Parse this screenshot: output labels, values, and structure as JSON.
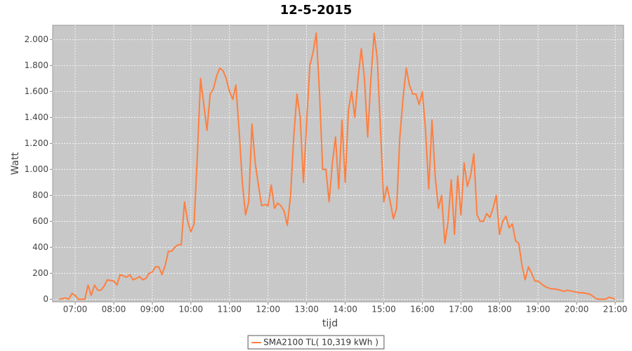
{
  "chart_data": {
    "type": "line",
    "title": "12-5-2015",
    "x_label": "tijd",
    "y_label": "Watt",
    "x": [
      "06:35",
      "06:40",
      "06:45",
      "06:50",
      "06:55",
      "07:00",
      "07:05",
      "07:10",
      "07:15",
      "07:20",
      "07:25",
      "07:30",
      "07:35",
      "07:40",
      "07:45",
      "07:50",
      "07:55",
      "08:00",
      "08:05",
      "08:10",
      "08:15",
      "08:20",
      "08:25",
      "08:30",
      "08:35",
      "08:40",
      "08:45",
      "08:50",
      "08:55",
      "09:00",
      "09:05",
      "09:10",
      "09:15",
      "09:20",
      "09:25",
      "09:30",
      "09:35",
      "09:40",
      "09:45",
      "09:50",
      "09:55",
      "10:00",
      "10:05",
      "10:10",
      "10:15",
      "10:20",
      "10:25",
      "10:30",
      "10:35",
      "10:40",
      "10:45",
      "10:50",
      "10:55",
      "11:00",
      "11:05",
      "11:10",
      "11:15",
      "11:20",
      "11:25",
      "11:30",
      "11:35",
      "11:40",
      "11:45",
      "11:50",
      "11:55",
      "12:00",
      "12:05",
      "12:10",
      "12:15",
      "12:20",
      "12:25",
      "12:30",
      "12:35",
      "12:40",
      "12:45",
      "12:50",
      "12:55",
      "13:00",
      "13:05",
      "13:10",
      "13:15",
      "13:20",
      "13:25",
      "13:30",
      "13:35",
      "13:40",
      "13:45",
      "13:50",
      "13:55",
      "14:00",
      "14:05",
      "14:10",
      "14:15",
      "14:20",
      "14:25",
      "14:30",
      "14:35",
      "14:40",
      "14:45",
      "14:50",
      "14:55",
      "15:00",
      "15:05",
      "15:10",
      "15:15",
      "15:20",
      "15:25",
      "15:30",
      "15:35",
      "15:40",
      "15:45",
      "15:50",
      "15:55",
      "16:00",
      "16:05",
      "16:10",
      "16:15",
      "16:20",
      "16:25",
      "16:30",
      "16:35",
      "16:40",
      "16:45",
      "16:50",
      "16:55",
      "17:00",
      "17:05",
      "17:10",
      "17:15",
      "17:20",
      "17:25",
      "17:30",
      "17:35",
      "17:40",
      "17:45",
      "17:50",
      "17:55",
      "18:00",
      "18:05",
      "18:10",
      "18:15",
      "18:20",
      "18:25",
      "18:30",
      "18:35",
      "18:40",
      "18:45",
      "18:50",
      "18:55",
      "19:00",
      "19:05",
      "19:10",
      "19:15",
      "19:20",
      "19:25",
      "19:30",
      "19:35",
      "19:40",
      "19:45",
      "19:50",
      "19:55",
      "20:00",
      "20:05",
      "20:10",
      "20:15",
      "20:20",
      "20:25",
      "20:30",
      "20:35",
      "20:40",
      "20:45",
      "20:50",
      "20:55",
      "21:00"
    ],
    "series": [
      {
        "name": "SMA2100 TL( 10,319 kWh )",
        "color": "#ff7f3f",
        "values": [
          0,
          5,
          10,
          0,
          45,
          30,
          0,
          0,
          0,
          110,
          30,
          110,
          70,
          70,
          100,
          150,
          145,
          140,
          110,
          190,
          180,
          170,
          190,
          150,
          160,
          175,
          150,
          160,
          200,
          210,
          250,
          250,
          190,
          260,
          370,
          370,
          400,
          420,
          420,
          750,
          600,
          520,
          580,
          1100,
          1700,
          1500,
          1300,
          1580,
          1620,
          1720,
          1780,
          1760,
          1700,
          1600,
          1540,
          1650,
          1300,
          900,
          650,
          750,
          1350,
          1050,
          880,
          720,
          730,
          720,
          880,
          700,
          740,
          720,
          680,
          570,
          800,
          1250,
          1580,
          1400,
          900,
          1350,
          1800,
          1900,
          2050,
          1600,
          1000,
          1000,
          750,
          1050,
          1250,
          850,
          1380,
          900,
          1450,
          1600,
          1400,
          1700,
          1930,
          1700,
          1250,
          1700,
          2050,
          1850,
          1300,
          750,
          870,
          750,
          620,
          700,
          1250,
          1550,
          1780,
          1650,
          1580,
          1580,
          1500,
          1600,
          1300,
          850,
          1380,
          950,
          700,
          800,
          430,
          600,
          920,
          500,
          950,
          650,
          1050,
          870,
          950,
          1120,
          650,
          600,
          600,
          660,
          630,
          700,
          800,
          500,
          600,
          640,
          550,
          580,
          450,
          430,
          260,
          150,
          250,
          200,
          140,
          140,
          120,
          100,
          90,
          80,
          80,
          75,
          70,
          60,
          70,
          65,
          60,
          55,
          50,
          50,
          45,
          40,
          25,
          5,
          0,
          0,
          0,
          15,
          10,
          0
        ]
      }
    ],
    "xlim": [
      "06:25",
      "21:13"
    ],
    "xticks": [
      "07:00",
      "08:00",
      "09:00",
      "10:00",
      "11:00",
      "12:00",
      "13:00",
      "14:00",
      "15:00",
      "16:00",
      "17:00",
      "18:00",
      "19:00",
      "20:00",
      "21:00"
    ],
    "ylim": [
      -20,
      2110
    ],
    "yticks": [
      0,
      200,
      400,
      600,
      800,
      {
        "value": 1000,
        "label": "1.000"
      },
      {
        "value": 1200,
        "label": "1.200"
      },
      {
        "value": 1400,
        "label": "1.400"
      },
      {
        "value": 1600,
        "label": "1.600"
      },
      {
        "value": 1800,
        "label": "1.800"
      },
      {
        "value": 2000,
        "label": "2.000"
      }
    ],
    "grid": true,
    "plot_background": "#c8c8c8",
    "legend": "bottom"
  }
}
